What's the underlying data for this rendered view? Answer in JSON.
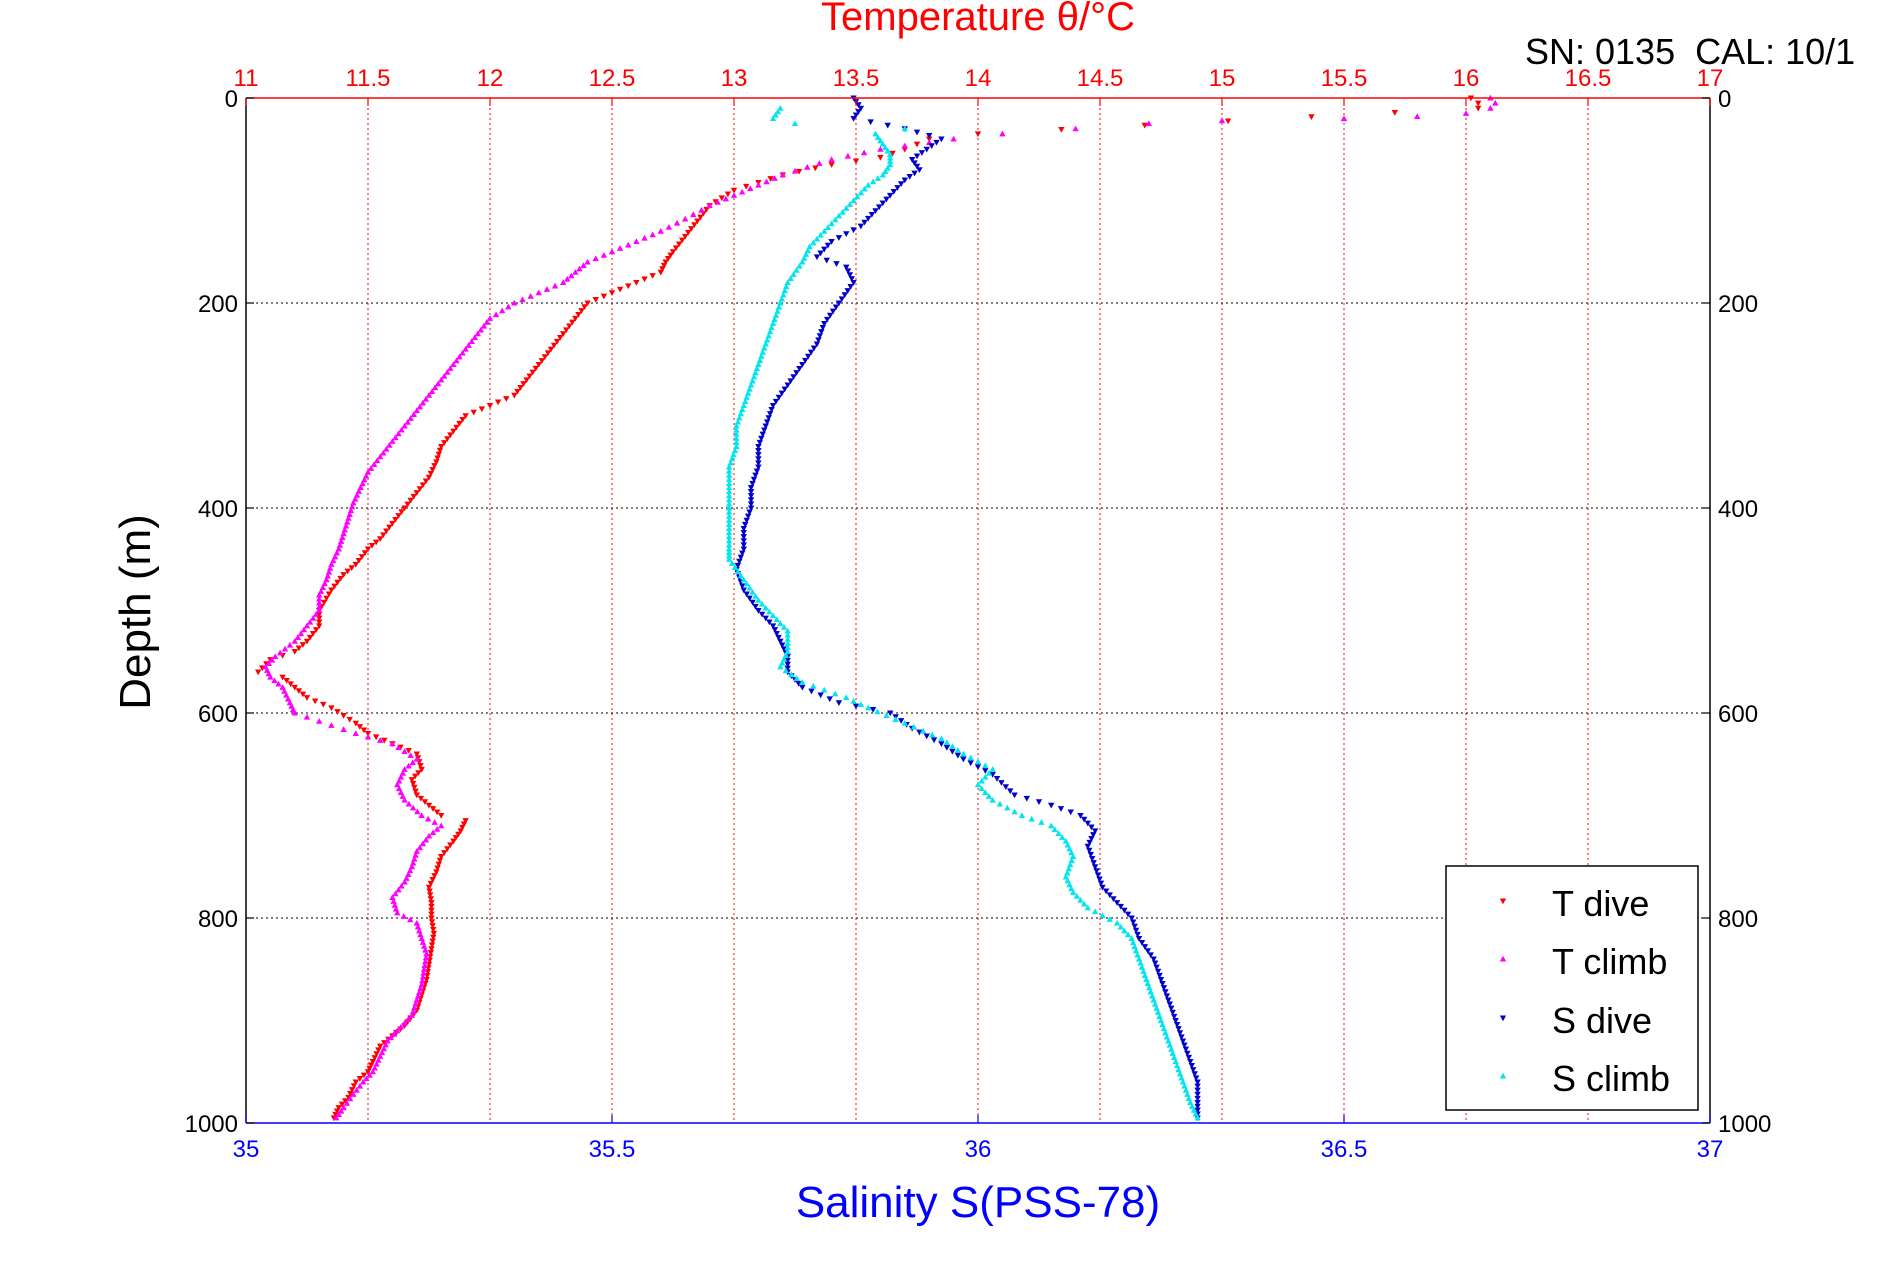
{
  "chart_data": {
    "type": "scatter",
    "title": "Temperature θ/°C",
    "header_text": "SN: 0135  CAL: 10/1",
    "xlabel": "Salinity S(PSS-78)",
    "ylabel": "Depth (m)",
    "temperature_axis": {
      "range": [
        11,
        17
      ],
      "ticks": [
        11,
        11.5,
        12,
        12.5,
        13,
        13.5,
        14,
        14.5,
        15,
        15.5,
        16,
        16.5,
        17
      ],
      "tick_labels": [
        "11",
        "11.5",
        "12",
        "12.5",
        "13",
        "13.5",
        "14",
        "14.5",
        "15",
        "15.5",
        "16",
        "16.5",
        "17"
      ],
      "color": "#ff0000"
    },
    "salinity_axis": {
      "range": [
        35,
        37
      ],
      "ticks": [
        35,
        35.5,
        36,
        36.5,
        37
      ],
      "tick_labels": [
        "35",
        "35.5",
        "36",
        "36.5",
        "37"
      ],
      "color": "#0000ff"
    },
    "depth_axis": {
      "range": [
        0,
        1000
      ],
      "reversed": true,
      "ticks": [
        0,
        200,
        400,
        600,
        800,
        1000
      ],
      "tick_labels": [
        "0",
        "200",
        "400",
        "600",
        "800",
        "1000"
      ]
    },
    "grid": {
      "temperature_vertical": true,
      "depth_horizontal": true
    },
    "legend": {
      "position": "bottom-right",
      "entries": [
        "T dive",
        "T climb",
        "S dive",
        "S climb"
      ]
    },
    "series": [
      {
        "name": "T dive",
        "axis": "temperature",
        "color": "#ff0000",
        "marker": "triangle-down",
        "points": [
          [
            16.02,
            0
          ],
          [
            16.05,
            5
          ],
          [
            16.05,
            10
          ],
          [
            14.0,
            35
          ],
          [
            13.8,
            40
          ],
          [
            13.75,
            45
          ],
          [
            13.7,
            50
          ],
          [
            13.6,
            58
          ],
          [
            13.4,
            65
          ],
          [
            13.2,
            75
          ],
          [
            13.0,
            90
          ],
          [
            12.9,
            105
          ],
          [
            12.85,
            120
          ],
          [
            12.8,
            135
          ],
          [
            12.75,
            150
          ],
          [
            12.72,
            160
          ],
          [
            12.7,
            170
          ],
          [
            12.6,
            180
          ],
          [
            12.5,
            190
          ],
          [
            12.4,
            200
          ],
          [
            12.35,
            215
          ],
          [
            12.3,
            230
          ],
          [
            12.25,
            245
          ],
          [
            12.2,
            260
          ],
          [
            12.15,
            275
          ],
          [
            12.1,
            290
          ],
          [
            12.0,
            300
          ],
          [
            11.9,
            310
          ],
          [
            11.85,
            325
          ],
          [
            11.8,
            340
          ],
          [
            11.78,
            355
          ],
          [
            11.75,
            370
          ],
          [
            11.7,
            385
          ],
          [
            11.65,
            400
          ],
          [
            11.6,
            415
          ],
          [
            11.55,
            430
          ],
          [
            11.5,
            440
          ],
          [
            11.45,
            455
          ],
          [
            11.4,
            465
          ],
          [
            11.35,
            480
          ],
          [
            11.3,
            500
          ],
          [
            11.3,
            515
          ],
          [
            11.25,
            530
          ],
          [
            11.2,
            540
          ],
          [
            11.1,
            548
          ],
          [
            11.05,
            560
          ],
          [
            11.15,
            565
          ],
          [
            11.2,
            575
          ],
          [
            11.25,
            585
          ],
          [
            11.35,
            595
          ],
          [
            11.45,
            610
          ],
          [
            11.5,
            620
          ],
          [
            11.6,
            630
          ],
          [
            11.7,
            640
          ],
          [
            11.72,
            655
          ],
          [
            11.68,
            665
          ],
          [
            11.7,
            680
          ],
          [
            11.75,
            690
          ],
          [
            11.8,
            700
          ],
          [
            11.9,
            705
          ],
          [
            11.88,
            715
          ],
          [
            11.85,
            725
          ],
          [
            11.8,
            740
          ],
          [
            11.78,
            755
          ],
          [
            11.75,
            770
          ],
          [
            11.76,
            785
          ],
          [
            11.76,
            800
          ],
          [
            11.77,
            815
          ],
          [
            11.76,
            830
          ],
          [
            11.75,
            845
          ],
          [
            11.74,
            860
          ],
          [
            11.72,
            875
          ],
          [
            11.7,
            890
          ],
          [
            11.65,
            905
          ],
          [
            11.6,
            915
          ],
          [
            11.55,
            925
          ],
          [
            11.52,
            940
          ],
          [
            11.5,
            950
          ],
          [
            11.45,
            960
          ],
          [
            11.42,
            975
          ],
          [
            11.38,
            985
          ],
          [
            11.36,
            995
          ]
        ]
      },
      {
        "name": "T climb",
        "axis": "temperature",
        "color": "#ff00ff",
        "marker": "triangle-up",
        "points": [
          [
            16.1,
            0
          ],
          [
            16.12,
            5
          ],
          [
            16.1,
            10
          ],
          [
            16.0,
            15
          ],
          [
            15.8,
            18
          ],
          [
            15.5,
            20
          ],
          [
            15.0,
            22
          ],
          [
            14.7,
            25
          ],
          [
            14.4,
            30
          ],
          [
            14.1,
            35
          ],
          [
            13.9,
            40
          ],
          [
            13.6,
            50
          ],
          [
            13.4,
            60
          ],
          [
            13.2,
            75
          ],
          [
            13.1,
            85
          ],
          [
            13.0,
            95
          ],
          [
            12.9,
            105
          ],
          [
            12.8,
            118
          ],
          [
            12.7,
            130
          ],
          [
            12.6,
            140
          ],
          [
            12.5,
            150
          ],
          [
            12.4,
            160
          ],
          [
            12.35,
            170
          ],
          [
            12.3,
            180
          ],
          [
            12.2,
            190
          ],
          [
            12.1,
            200
          ],
          [
            12.0,
            215
          ],
          [
            11.95,
            230
          ],
          [
            11.9,
            245
          ],
          [
            11.85,
            260
          ],
          [
            11.8,
            275
          ],
          [
            11.75,
            290
          ],
          [
            11.7,
            305
          ],
          [
            11.65,
            320
          ],
          [
            11.6,
            335
          ],
          [
            11.55,
            350
          ],
          [
            11.5,
            365
          ],
          [
            11.47,
            380
          ],
          [
            11.44,
            395
          ],
          [
            11.42,
            410
          ],
          [
            11.4,
            425
          ],
          [
            11.38,
            440
          ],
          [
            11.35,
            455
          ],
          [
            11.33,
            470
          ],
          [
            11.3,
            485
          ],
          [
            11.3,
            500
          ],
          [
            11.25,
            515
          ],
          [
            11.2,
            530
          ],
          [
            11.12,
            545
          ],
          [
            11.08,
            555
          ],
          [
            11.1,
            565
          ],
          [
            11.15,
            575
          ],
          [
            11.18,
            590
          ],
          [
            11.2,
            600
          ],
          [
            11.35,
            612
          ],
          [
            11.45,
            620
          ],
          [
            11.6,
            630
          ],
          [
            11.7,
            645
          ],
          [
            11.65,
            655
          ],
          [
            11.62,
            670
          ],
          [
            11.65,
            685
          ],
          [
            11.72,
            700
          ],
          [
            11.8,
            710
          ],
          [
            11.75,
            720
          ],
          [
            11.7,
            735
          ],
          [
            11.68,
            750
          ],
          [
            11.65,
            765
          ],
          [
            11.6,
            780
          ],
          [
            11.62,
            795
          ],
          [
            11.7,
            805
          ],
          [
            11.72,
            820
          ],
          [
            11.74,
            835
          ],
          [
            11.73,
            850
          ],
          [
            11.72,
            865
          ],
          [
            11.7,
            880
          ],
          [
            11.68,
            895
          ],
          [
            11.62,
            910
          ],
          [
            11.58,
            920
          ],
          [
            11.55,
            935
          ],
          [
            11.52,
            950
          ],
          [
            11.48,
            960
          ],
          [
            11.44,
            972
          ],
          [
            11.4,
            985
          ],
          [
            11.37,
            995
          ]
        ]
      },
      {
        "name": "S dive",
        "axis": "salinity",
        "color": "#0000cc",
        "marker": "triangle-down",
        "points": [
          [
            35.83,
            0
          ],
          [
            35.84,
            10
          ],
          [
            35.83,
            20
          ],
          [
            35.9,
            30
          ],
          [
            35.95,
            40
          ],
          [
            35.93,
            50
          ],
          [
            35.91,
            60
          ],
          [
            35.92,
            70
          ],
          [
            35.9,
            80
          ],
          [
            35.88,
            95
          ],
          [
            35.86,
            110
          ],
          [
            35.84,
            125
          ],
          [
            35.8,
            140
          ],
          [
            35.78,
            155
          ],
          [
            35.82,
            165
          ],
          [
            35.83,
            180
          ],
          [
            35.81,
            200
          ],
          [
            35.79,
            220
          ],
          [
            35.78,
            240
          ],
          [
            35.76,
            260
          ],
          [
            35.74,
            280
          ],
          [
            35.72,
            300
          ],
          [
            35.71,
            320
          ],
          [
            35.7,
            340
          ],
          [
            35.7,
            360
          ],
          [
            35.69,
            380
          ],
          [
            35.69,
            400
          ],
          [
            35.68,
            420
          ],
          [
            35.68,
            440
          ],
          [
            35.67,
            460
          ],
          [
            35.68,
            480
          ],
          [
            35.7,
            500
          ],
          [
            35.72,
            515
          ],
          [
            35.73,
            530
          ],
          [
            35.74,
            545
          ],
          [
            35.74,
            560
          ],
          [
            35.76,
            575
          ],
          [
            35.81,
            590
          ],
          [
            35.88,
            600
          ],
          [
            35.91,
            615
          ],
          [
            35.95,
            630
          ],
          [
            35.98,
            645
          ],
          [
            36.02,
            660
          ],
          [
            36.05,
            680
          ],
          [
            36.1,
            690
          ],
          [
            36.14,
            700
          ],
          [
            36.16,
            715
          ],
          [
            36.15,
            730
          ],
          [
            36.16,
            750
          ],
          [
            36.17,
            770
          ],
          [
            36.19,
            785
          ],
          [
            36.21,
            800
          ],
          [
            36.22,
            820
          ],
          [
            36.24,
            840
          ],
          [
            36.25,
            860
          ],
          [
            36.26,
            880
          ],
          [
            36.27,
            900
          ],
          [
            36.28,
            920
          ],
          [
            36.29,
            940
          ],
          [
            36.3,
            960
          ],
          [
            36.3,
            980
          ],
          [
            36.3,
            995
          ]
        ]
      },
      {
        "name": "S climb",
        "axis": "salinity",
        "color": "#00e5ee",
        "marker": "triangle-up",
        "points": [
          [
            35.73,
            10
          ],
          [
            35.72,
            20
          ],
          [
            35.75,
            25
          ],
          [
            35.9,
            30
          ],
          [
            35.86,
            35
          ],
          [
            35.87,
            45
          ],
          [
            35.88,
            55
          ],
          [
            35.88,
            65
          ],
          [
            35.87,
            75
          ],
          [
            35.85,
            85
          ],
          [
            35.83,
            100
          ],
          [
            35.81,
            115
          ],
          [
            35.79,
            130
          ],
          [
            35.77,
            145
          ],
          [
            35.76,
            160
          ],
          [
            35.74,
            180
          ],
          [
            35.73,
            200
          ],
          [
            35.72,
            220
          ],
          [
            35.71,
            240
          ],
          [
            35.7,
            260
          ],
          [
            35.69,
            280
          ],
          [
            35.68,
            300
          ],
          [
            35.67,
            320
          ],
          [
            35.67,
            340
          ],
          [
            35.66,
            360
          ],
          [
            35.66,
            380
          ],
          [
            35.66,
            400
          ],
          [
            35.66,
            420
          ],
          [
            35.66,
            440
          ],
          [
            35.66,
            450
          ],
          [
            35.68,
            470
          ],
          [
            35.7,
            490
          ],
          [
            35.72,
            505
          ],
          [
            35.74,
            520
          ],
          [
            35.74,
            540
          ],
          [
            35.73,
            555
          ],
          [
            35.76,
            570
          ],
          [
            35.82,
            585
          ],
          [
            35.85,
            595
          ],
          [
            35.9,
            610
          ],
          [
            35.95,
            625
          ],
          [
            35.98,
            640
          ],
          [
            36.02,
            655
          ],
          [
            36.0,
            670
          ],
          [
            36.02,
            685
          ],
          [
            36.06,
            700
          ],
          [
            36.1,
            710
          ],
          [
            36.12,
            725
          ],
          [
            36.13,
            740
          ],
          [
            36.12,
            760
          ],
          [
            36.13,
            775
          ],
          [
            36.15,
            790
          ],
          [
            36.19,
            805
          ],
          [
            36.21,
            820
          ],
          [
            36.22,
            840
          ],
          [
            36.23,
            860
          ],
          [
            36.24,
            880
          ],
          [
            36.25,
            900
          ],
          [
            36.26,
            920
          ],
          [
            36.27,
            940
          ],
          [
            36.28,
            960
          ],
          [
            36.29,
            980
          ],
          [
            36.3,
            995
          ]
        ]
      }
    ]
  }
}
